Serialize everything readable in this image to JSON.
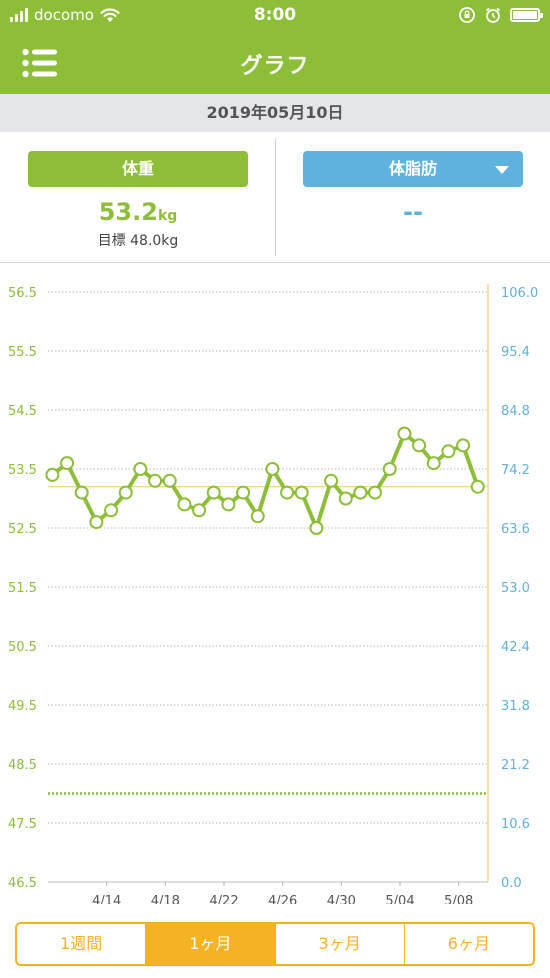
{
  "status_bar": {
    "carrier": "docomo",
    "time": "8:00"
  },
  "nav": {
    "title": "グラフ"
  },
  "date": "2019年05月10日",
  "summary": {
    "weight": {
      "label": "体重",
      "value": "53.2",
      "unit": "kg",
      "goal": "目標 48.0kg"
    },
    "fat": {
      "label": "体脂肪",
      "value": "--"
    }
  },
  "chart_data": {
    "type": "line",
    "left_axis_ticks": [
      "56.5",
      "55.5",
      "54.5",
      "53.5",
      "52.5",
      "51.5",
      "50.5",
      "49.5",
      "48.5",
      "47.5",
      "46.5"
    ],
    "right_axis_ticks": [
      "106.0",
      "95.4",
      "84.8",
      "74.2",
      "63.6",
      "53.0",
      "42.4",
      "31.8",
      "21.2",
      "10.6",
      "0.0"
    ],
    "left_ylim": [
      46.5,
      56.5
    ],
    "right_ylim": [
      0.0,
      106.0
    ],
    "x_tick_labels": [
      "4/14",
      "4/18",
      "4/22",
      "4/26",
      "4/30",
      "5/04",
      "5/08"
    ],
    "x_tick_days": [
      4,
      8,
      12,
      16,
      20,
      24,
      28
    ],
    "x_range_days": [
      0,
      30
    ],
    "reference_lines": {
      "current_weight": 53.2,
      "goal_weight": 48.0
    },
    "series": [
      {
        "values": [
          {
            "day": 0.3,
            "y": 53.4
          },
          {
            "day": 1.3,
            "y": 53.6
          },
          {
            "day": 2.3,
            "y": 53.1
          },
          {
            "day": 3.3,
            "y": 52.6
          },
          {
            "day": 4.3,
            "y": 52.8
          },
          {
            "day": 5.3,
            "y": 53.1
          },
          {
            "day": 6.3,
            "y": 53.5
          },
          {
            "day": 7.3,
            "y": 53.3
          },
          {
            "day": 8.3,
            "y": 53.3
          },
          {
            "day": 9.3,
            "y": 52.9
          },
          {
            "day": 10.3,
            "y": 52.8
          },
          {
            "day": 11.3,
            "y": 53.1
          },
          {
            "day": 12.3,
            "y": 52.9
          },
          {
            "day": 13.3,
            "y": 53.1
          },
          {
            "day": 14.3,
            "y": 52.7
          },
          {
            "day": 15.3,
            "y": 53.5
          },
          {
            "day": 16.3,
            "y": 53.1
          },
          {
            "day": 17.3,
            "y": 53.1
          },
          {
            "day": 18.3,
            "y": 52.5
          },
          {
            "day": 19.3,
            "y": 53.3
          },
          {
            "day": 20.3,
            "y": 53.0
          },
          {
            "day": 21.3,
            "y": 53.1
          },
          {
            "day": 22.3,
            "y": 53.1
          },
          {
            "day": 23.3,
            "y": 53.5
          },
          {
            "day": 24.3,
            "y": 54.1
          },
          {
            "day": 25.3,
            "y": 53.9
          },
          {
            "day": 26.3,
            "y": 53.6
          },
          {
            "day": 27.3,
            "y": 53.8
          },
          {
            "day": 28.3,
            "y": 53.9
          },
          {
            "day": 29.3,
            "y": 53.2
          }
        ]
      }
    ]
  },
  "periods": [
    {
      "label": "1週間",
      "active": false
    },
    {
      "label": "1ヶ月",
      "active": true
    },
    {
      "label": "3ヶ月",
      "active": false
    },
    {
      "label": "6ヶ月",
      "active": false
    }
  ],
  "colors": {
    "accent": "#8cbe38",
    "fat": "#5eb2dd",
    "period": "#f5b223"
  }
}
